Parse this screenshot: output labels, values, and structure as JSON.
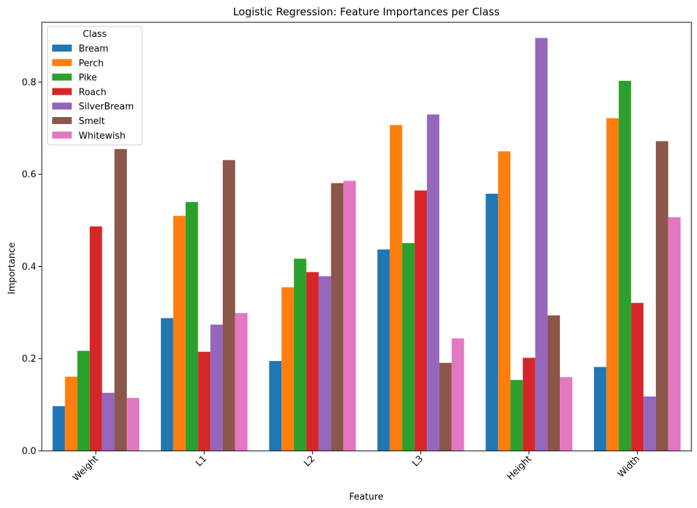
{
  "chart_data": {
    "type": "bar",
    "title": "Logistic Regression: Feature Importances per Class",
    "xlabel": "Feature",
    "ylabel": "Importance",
    "ylim": [
      0,
      0.93
    ],
    "yticks": [
      "0.0",
      "0.2",
      "0.4",
      "0.6",
      "0.8"
    ],
    "categories": [
      "Weight",
      "L1",
      "L2",
      "L3",
      "Height",
      "Width"
    ],
    "legend": {
      "title": "Class",
      "placement": "top-left"
    },
    "series": [
      {
        "name": "Bream",
        "color": "#1f77b4",
        "values": [
          0.097,
          0.288,
          0.195,
          0.437,
          0.558,
          0.182
        ]
      },
      {
        "name": "Perch",
        "color": "#ff7f0e",
        "values": [
          0.161,
          0.51,
          0.355,
          0.707,
          0.65,
          0.722
        ]
      },
      {
        "name": "Pike",
        "color": "#2ca02c",
        "values": [
          0.217,
          0.54,
          0.417,
          0.451,
          0.154,
          0.803
        ]
      },
      {
        "name": "Roach",
        "color": "#d62728",
        "values": [
          0.487,
          0.215,
          0.388,
          0.565,
          0.202,
          0.321
        ]
      },
      {
        "name": "SilverBream",
        "color": "#9467bd",
        "values": [
          0.126,
          0.274,
          0.379,
          0.73,
          0.896,
          0.118
        ]
      },
      {
        "name": "Smelt",
        "color": "#8c564b",
        "values": [
          0.655,
          0.631,
          0.581,
          0.191,
          0.294,
          0.672
        ]
      },
      {
        "name": "Whitewish",
        "color": "#e377c2",
        "values": [
          0.115,
          0.299,
          0.586,
          0.244,
          0.16,
          0.507
        ]
      }
    ]
  }
}
